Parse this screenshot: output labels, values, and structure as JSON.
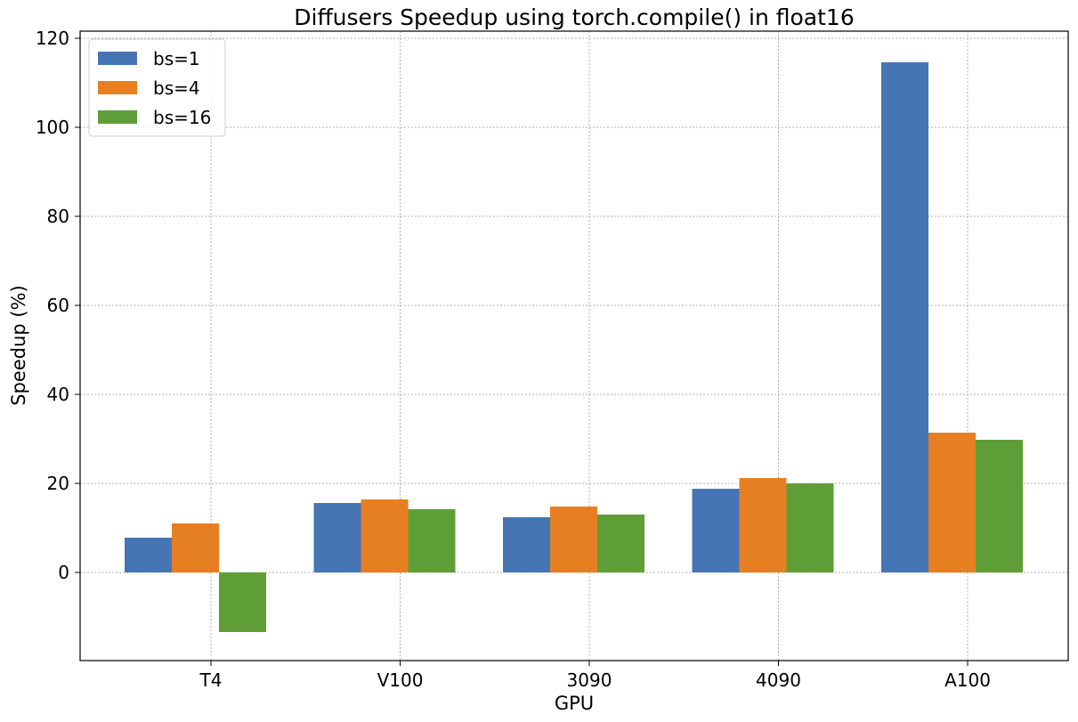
{
  "chart_data": {
    "type": "bar",
    "title": "Diffusers Speedup using torch.compile() in float16",
    "xlabel": "GPU",
    "ylabel": "Speedup (%)",
    "categories": [
      "T4",
      "V100",
      "3090",
      "4090",
      "A100"
    ],
    "series": [
      {
        "name": "bs=1",
        "color": "#4575b4",
        "values": [
          7.8,
          15.6,
          12.4,
          18.8,
          114.6
        ]
      },
      {
        "name": "bs=4",
        "color": "#e67e22",
        "values": [
          11.0,
          16.4,
          14.8,
          21.2,
          31.4
        ]
      },
      {
        "name": "bs=16",
        "color": "#5f9e37",
        "values": [
          -13.4,
          14.2,
          13.0,
          20.0,
          29.8
        ]
      }
    ],
    "ylim": [
      -19.8,
      121.6
    ],
    "yticks": [
      0,
      20,
      40,
      60,
      80,
      100,
      120
    ],
    "grid": true,
    "legend": "top-left"
  }
}
